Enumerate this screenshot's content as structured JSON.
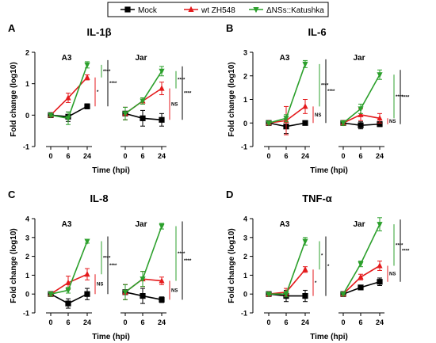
{
  "legend": {
    "entries": [
      {
        "name": "Mock",
        "color": "#000000",
        "marker": "square"
      },
      {
        "name": "wt ZH548",
        "color": "#e41a1c",
        "marker": "triangle-up"
      },
      {
        "name": "ΔNSs::Katushka",
        "color": "#2ca02c",
        "marker": "triangle-down"
      }
    ],
    "placement": "top-center"
  },
  "colors": {
    "mock": "#000000",
    "wt": "#e41a1c",
    "dns": "#2ca02c"
  },
  "chart_data": [
    {
      "panel": "A",
      "type": "line",
      "title": "IL-1β",
      "ylabel": "Fold change (log10)",
      "xlabel": "Time (hpi)",
      "ylim": [
        -1,
        2
      ],
      "yticks": [
        -1,
        0,
        1,
        2
      ],
      "xticks": [
        0,
        6,
        24
      ],
      "groups": [
        {
          "name": "A3",
          "series": [
            {
              "name": "Mock",
              "values": [
                0.0,
                -0.05,
                0.28
              ],
              "err": [
                0.05,
                0.15,
                0.08
              ]
            },
            {
              "name": "wt ZH548",
              "values": [
                0.0,
                0.55,
                1.2
              ],
              "err": [
                0.05,
                0.15,
                0.08
              ]
            },
            {
              "name": "ΔNSs::Katushka",
              "values": [
                0.0,
                -0.1,
                1.6
              ],
              "err": [
                0.05,
                0.2,
                0.1
              ]
            }
          ],
          "sig": [
            "*",
            "****",
            "****"
          ]
        },
        {
          "name": "Jar",
          "series": [
            {
              "name": "Mock",
              "values": [
                0.05,
                -0.1,
                -0.15
              ],
              "err": [
                0.2,
                0.25,
                0.2
              ]
            },
            {
              "name": "wt ZH548",
              "values": [
                0.05,
                0.45,
                0.85
              ],
              "err": [
                0.2,
                0.1,
                0.2
              ]
            },
            {
              "name": "ΔNSs::Katushka",
              "values": [
                0.05,
                0.45,
                1.4
              ],
              "err": [
                0.2,
                0.1,
                0.15
              ]
            }
          ],
          "sig": [
            "NS",
            "****",
            "****"
          ]
        }
      ]
    },
    {
      "panel": "B",
      "type": "line",
      "title": "IL-6",
      "ylabel": "Fold change (log10)",
      "xlabel": "Time (hpi)",
      "ylim": [
        -1,
        3
      ],
      "yticks": [
        -1,
        0,
        1,
        2,
        3
      ],
      "xticks": [
        0,
        6,
        24
      ],
      "groups": [
        {
          "name": "A3",
          "series": [
            {
              "name": "Mock",
              "values": [
                0.0,
                -0.15,
                0.0
              ],
              "err": [
                0.05,
                0.3,
                0.05
              ]
            },
            {
              "name": "wt ZH548",
              "values": [
                0.0,
                0.1,
                0.7
              ],
              "err": [
                0.05,
                0.6,
                0.3
              ]
            },
            {
              "name": "ΔNSs::Katushka",
              "values": [
                0.0,
                0.2,
                2.5
              ],
              "err": [
                0.05,
                0.15,
                0.15
              ]
            }
          ],
          "sig": [
            "NS",
            "****",
            "****"
          ]
        },
        {
          "name": "Jar",
          "series": [
            {
              "name": "Mock",
              "values": [
                0.0,
                -0.1,
                -0.05
              ],
              "err": [
                0.1,
                0.15,
                0.1
              ]
            },
            {
              "name": "wt ZH548",
              "values": [
                0.0,
                0.35,
                0.2
              ],
              "err": [
                0.1,
                0.25,
                0.2
              ]
            },
            {
              "name": "ΔNSs::Katushka",
              "values": [
                0.0,
                0.6,
                2.05
              ],
              "err": [
                0.1,
                0.2,
                0.2
              ]
            }
          ],
          "sig": [
            "NS",
            "****",
            "****"
          ]
        }
      ]
    },
    {
      "panel": "C",
      "type": "line",
      "title": "IL-8",
      "ylabel": "Fold change (log10)",
      "xlabel": "Time (hpi)",
      "ylim": [
        -1,
        4
      ],
      "yticks": [
        -1,
        0,
        1,
        2,
        3,
        4
      ],
      "xticks": [
        0,
        6,
        24
      ],
      "groups": [
        {
          "name": "A3",
          "series": [
            {
              "name": "Mock",
              "values": [
                0.0,
                -0.5,
                0.0
              ],
              "err": [
                0.1,
                0.25,
                0.3
              ]
            },
            {
              "name": "wt ZH548",
              "values": [
                0.0,
                0.6,
                1.05
              ],
              "err": [
                0.1,
                0.35,
                0.3
              ]
            },
            {
              "name": "ΔNSs::Katushka",
              "values": [
                0.0,
                0.2,
                2.8
              ],
              "err": [
                0.1,
                0.15,
                0.1
              ]
            }
          ],
          "sig": [
            "NS",
            "****",
            "****"
          ]
        },
        {
          "name": "Jar",
          "series": [
            {
              "name": "Mock",
              "values": [
                0.1,
                -0.1,
                -0.3
              ],
              "err": [
                0.4,
                0.4,
                0.15
              ]
            },
            {
              "name": "wt ZH548",
              "values": [
                0.1,
                0.8,
                0.7
              ],
              "err": [
                0.4,
                0.4,
                0.2
              ]
            },
            {
              "name": "ΔNSs::Katushka",
              "values": [
                0.1,
                0.8,
                3.6
              ],
              "err": [
                0.4,
                0.4,
                0.15
              ]
            }
          ],
          "sig": [
            "NS",
            "****",
            "****"
          ]
        }
      ]
    },
    {
      "panel": "D",
      "type": "line",
      "title": "TNF-α",
      "ylabel": "Fold change (log10)",
      "xlabel": "Time (hpi)",
      "ylim": [
        -1,
        4
      ],
      "yticks": [
        -1,
        0,
        1,
        2,
        3,
        4
      ],
      "xticks": [
        0,
        6,
        24
      ],
      "groups": [
        {
          "name": "A3",
          "series": [
            {
              "name": "Mock",
              "values": [
                0.0,
                -0.1,
                -0.1
              ],
              "err": [
                0.05,
                0.3,
                0.3
              ]
            },
            {
              "name": "wt ZH548",
              "values": [
                0.0,
                0.1,
                1.3
              ],
              "err": [
                0.05,
                0.2,
                0.15
              ]
            },
            {
              "name": "ΔNSs::Katushka",
              "values": [
                0.0,
                0.0,
                2.8
              ],
              "err": [
                0.05,
                0.15,
                0.2
              ]
            }
          ],
          "sig": [
            "*",
            "*",
            "*"
          ]
        },
        {
          "name": "Jar",
          "series": [
            {
              "name": "Mock",
              "values": [
                0.0,
                0.35,
                0.65
              ],
              "err": [
                0.05,
                0.1,
                0.2
              ]
            },
            {
              "name": "wt ZH548",
              "values": [
                0.0,
                0.9,
                1.5
              ],
              "err": [
                0.05,
                0.15,
                0.25
              ]
            },
            {
              "name": "ΔNSs::Katushka",
              "values": [
                0.0,
                1.6,
                3.7
              ],
              "err": [
                0.05,
                0.15,
                0.35
              ]
            }
          ],
          "sig": [
            "NS",
            "****",
            "****"
          ]
        }
      ]
    }
  ]
}
